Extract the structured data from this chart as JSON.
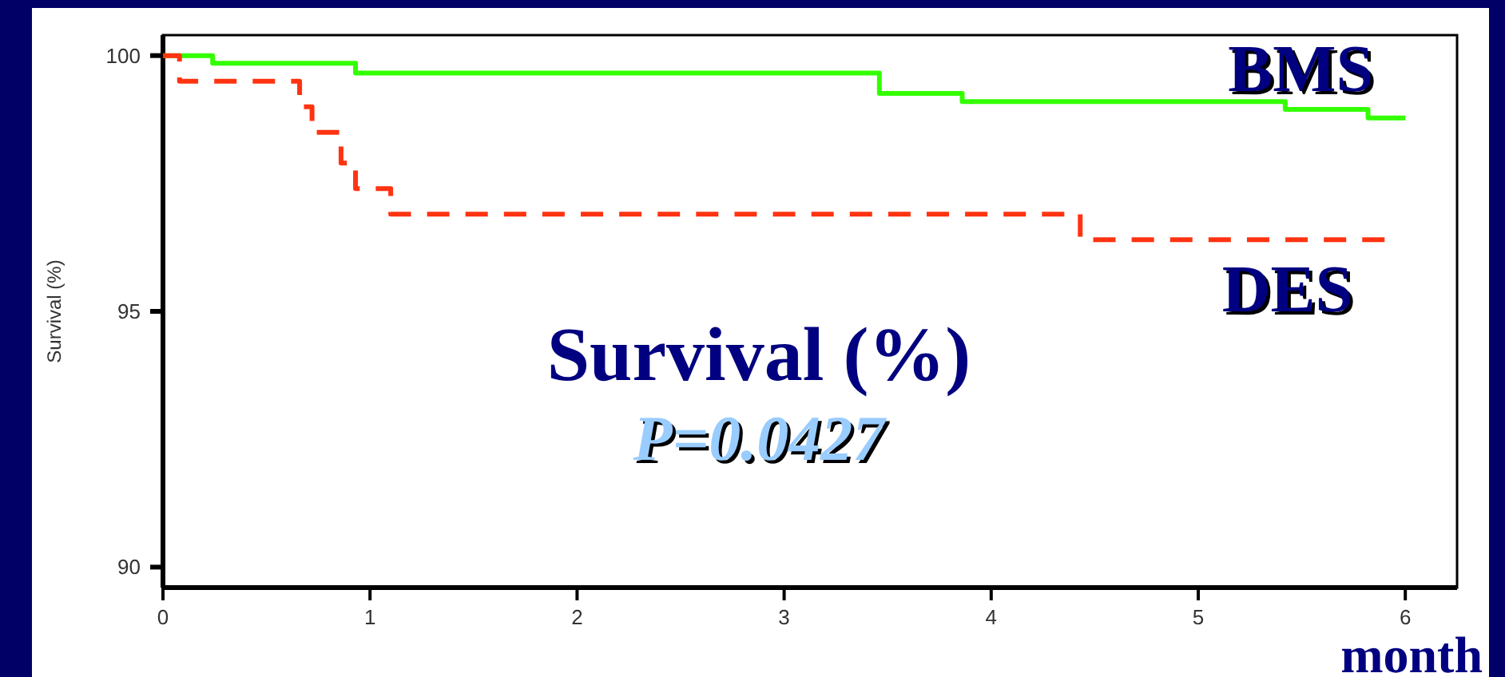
{
  "chart_data": {
    "type": "step",
    "title": "Survival (%)",
    "subtitle": "P=0.0427",
    "xlabel": "month",
    "ylabel": "Survival (%)",
    "xlim": [
      0,
      6.25
    ],
    "ylim": [
      89.6,
      100.4
    ],
    "xticks": [
      0,
      1,
      2,
      3,
      4,
      5,
      6
    ],
    "yticks": [
      90,
      95,
      100
    ],
    "grid": false,
    "marker": "none",
    "series": [
      {
        "name": "BMS",
        "color": "#33ff00",
        "line_style": "solid",
        "x": [
          0,
          0.24,
          0.93,
          3.46,
          3.86,
          5.42,
          5.82,
          6.0
        ],
        "values": [
          100,
          99.85,
          99.66,
          99.26,
          99.1,
          98.95,
          98.78,
          98.78
        ]
      },
      {
        "name": "DES",
        "color": "#ff3311",
        "line_style": "dashed",
        "x": [
          0,
          0.08,
          0.66,
          0.72,
          0.86,
          0.93,
          1.1,
          4.43,
          5.9
        ],
        "values": [
          100,
          99.5,
          99.0,
          98.5,
          97.9,
          97.4,
          96.9,
          96.4,
          96.4
        ]
      }
    ]
  }
}
